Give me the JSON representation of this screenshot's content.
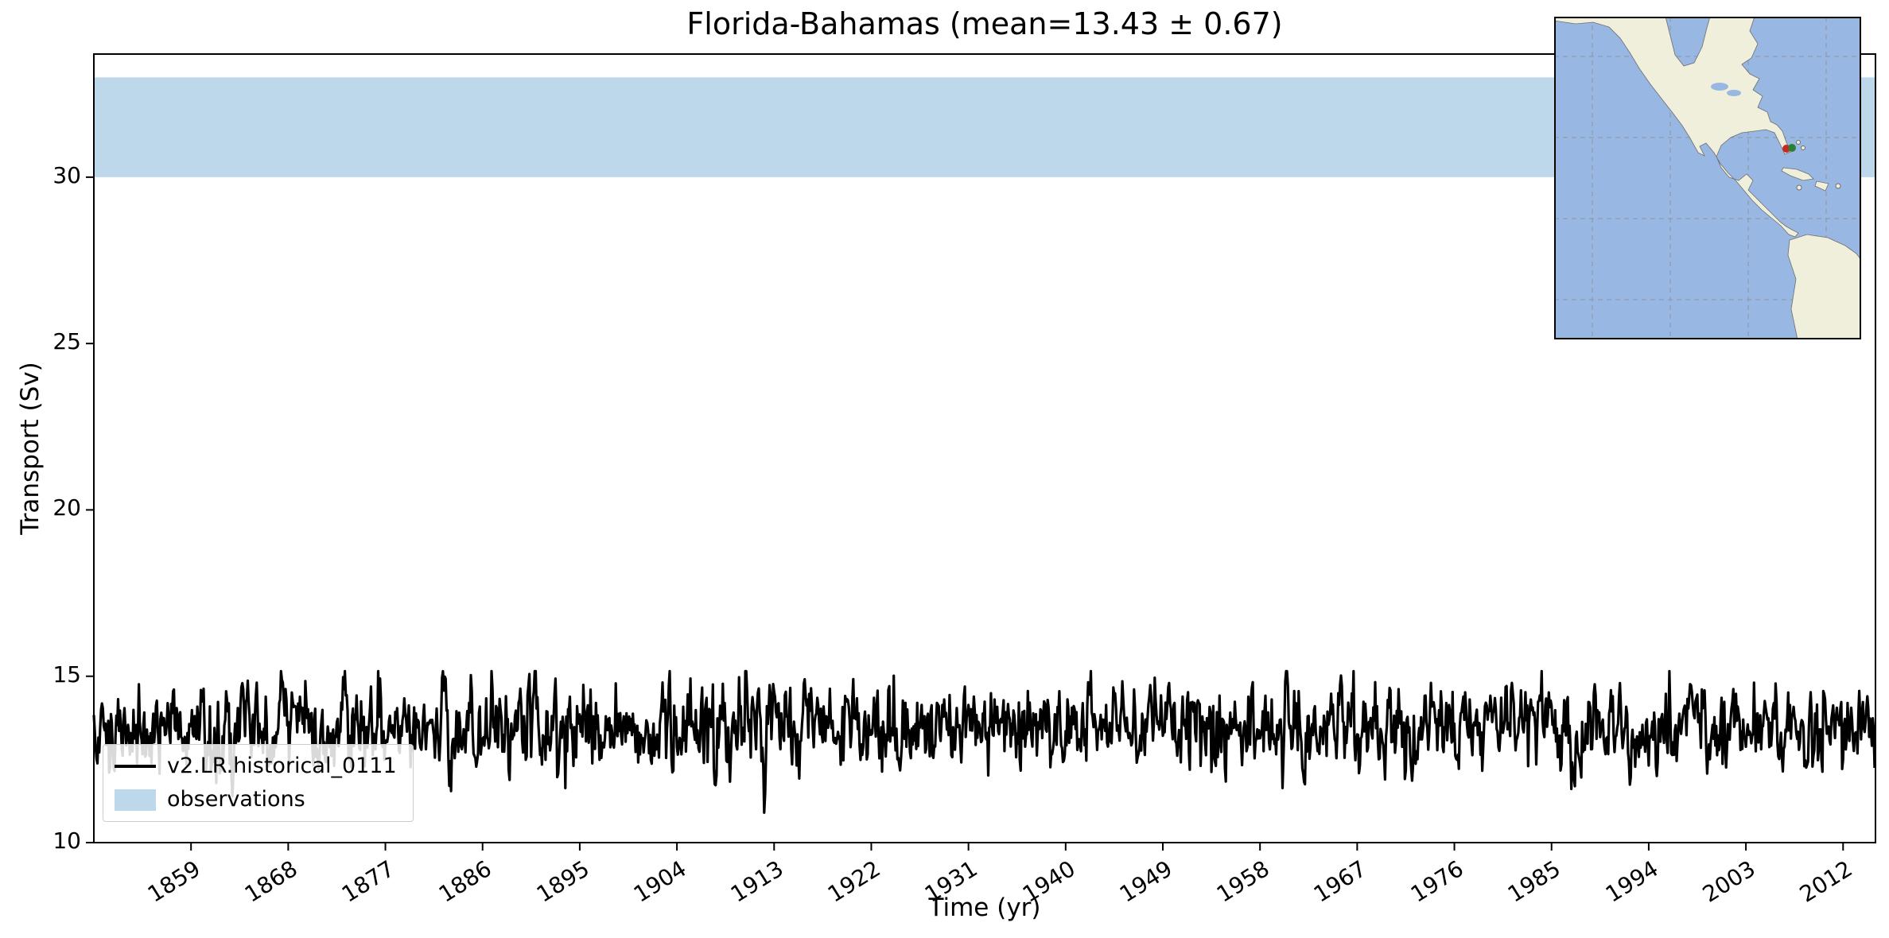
{
  "chart_data": {
    "type": "line",
    "title": "Florida-Bahamas (mean=13.43 ± 0.67)",
    "xlabel": "Time (yr)",
    "ylabel": "Transport (Sv)",
    "xlim": [
      1850,
      2015
    ],
    "ylim": [
      10,
      33.7
    ],
    "xticks": [
      1859,
      1868,
      1877,
      1886,
      1895,
      1904,
      1913,
      1922,
      1931,
      1940,
      1949,
      1958,
      1967,
      1976,
      1985,
      1994,
      2003,
      2012
    ],
    "yticks": [
      10,
      15,
      20,
      25,
      30
    ],
    "grid": false,
    "legend_position": "lower left",
    "series": [
      {
        "name": "v2.LR.historical_0111",
        "color": "#000000",
        "x_start": 1850,
        "x_end": 2014.92,
        "samples_per_year": 12,
        "mean": 13.43,
        "std": 0.67,
        "min": 10.9,
        "max": 15.15
      }
    ],
    "bands": [
      {
        "name": "observations",
        "color": "#bdd8ea",
        "ymin": 30,
        "ymax": 33
      }
    ]
  },
  "inset_map": {
    "ocean_color": "#98b7e2",
    "land_color": "#efefdb",
    "coast_color": "#6e6e6e",
    "grid_color": "#8a8a8a",
    "border_color": "#000000",
    "marker_colors": [
      "#c62828",
      "#2e7d32"
    ]
  }
}
